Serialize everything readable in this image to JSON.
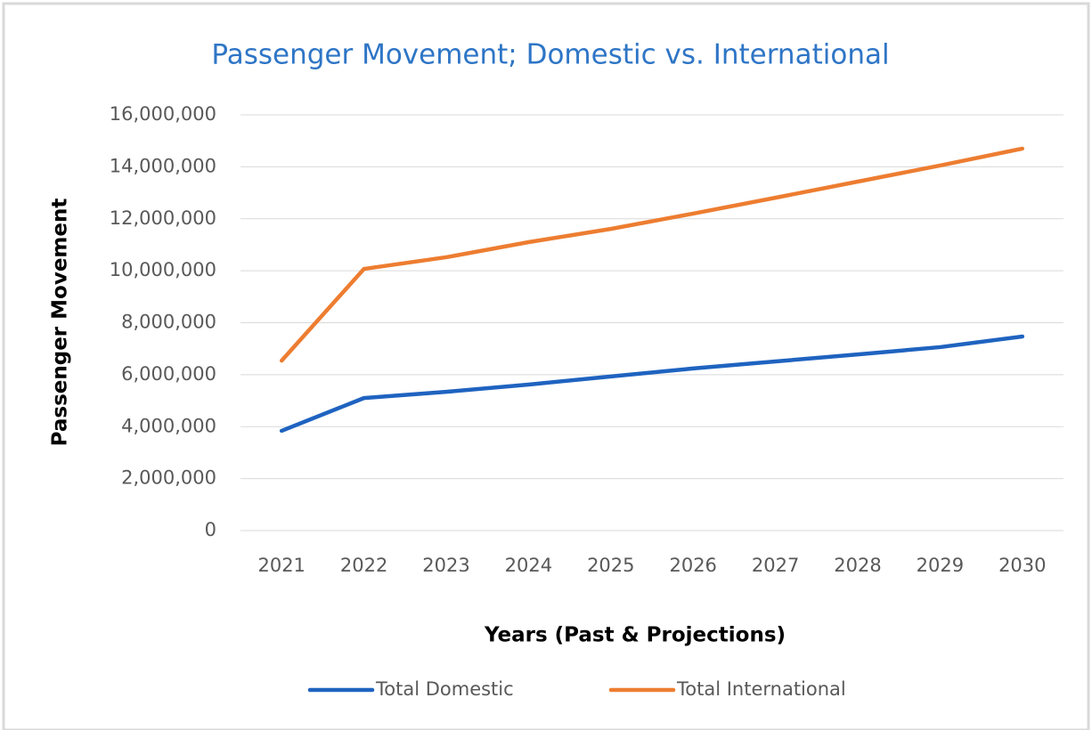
{
  "chart_data": {
    "type": "line",
    "title": "Passenger Movement; Domestic vs. International",
    "x_label": "Years (Past & Projections)",
    "y_label": "Passenger Movement",
    "categories": [
      "2021",
      "2022",
      "2023",
      "2024",
      "2025",
      "2026",
      "2027",
      "2028",
      "2029",
      "2030"
    ],
    "series": [
      {
        "name": "Total Domestic",
        "color": "#1f63c0",
        "values": [
          3840000,
          5100000,
          5340000,
          5620000,
          5930000,
          6240000,
          6510000,
          6780000,
          7060000,
          7470000
        ]
      },
      {
        "name": "Total International",
        "color": "#ed7d31",
        "values": [
          6540000,
          10070000,
          10520000,
          11100000,
          11610000,
          12200000,
          12810000,
          13430000,
          14050000,
          14700000
        ]
      }
    ],
    "ylim": [
      0,
      16000000
    ],
    "yticks": [
      0,
      {
        "value": 2000000,
        "label": "2,000,000"
      },
      {
        "value": 4000000,
        "label": "4,000,000"
      },
      {
        "value": 6000000,
        "label": "6,000,000"
      },
      {
        "value": 8000000,
        "label": "8,000,000"
      },
      {
        "value": 10000000,
        "label": "10,000,000"
      },
      {
        "value": 12000000,
        "label": "12,000,000"
      },
      {
        "value": 14000000,
        "label": "14,000,000"
      },
      {
        "value": 16000000,
        "label": "16,000,000"
      }
    ],
    "grid": true,
    "legend": "bottom"
  }
}
